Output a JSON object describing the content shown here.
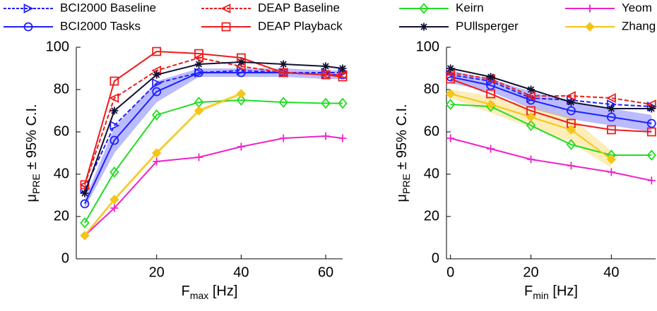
{
  "chart_data": [
    {
      "type": "line",
      "x_label": {
        "main": "F",
        "sub": "max",
        "rest": " [Hz]"
      },
      "y_label": {
        "main": "μ",
        "sub": "PRE",
        "rest": " ± 95% C.I."
      },
      "x": [
        3,
        10,
        20,
        30,
        40,
        50,
        60,
        64
      ],
      "xlim": [
        1,
        64
      ],
      "xticks": [
        20,
        40,
        60
      ],
      "ylim": [
        0,
        100
      ],
      "yticks": [
        0,
        20,
        40,
        60,
        80,
        100
      ],
      "series": [
        {
          "name": "BCI2000 Baseline",
          "color": "#1f1fff",
          "marker": "triangle-right",
          "dash": true,
          "values": [
            33,
            63,
            83,
            88,
            89,
            88,
            88,
            88
          ]
        },
        {
          "name": "BCI2000 Tasks",
          "color": "#1f1fff",
          "marker": "circle",
          "dash": false,
          "values": [
            26,
            56,
            79,
            88,
            88,
            88,
            87,
            87
          ],
          "ci": [
            2,
            6,
            5,
            2,
            2,
            2,
            2,
            2
          ]
        },
        {
          "name": "DEAP Baseline",
          "color": "#ee1c1c",
          "marker": "triangle-left",
          "dash": true,
          "values": [
            35,
            76,
            89,
            95,
            91,
            88,
            87,
            87
          ]
        },
        {
          "name": "DEAP Playback",
          "color": "#ee1c1c",
          "marker": "square",
          "dash": false,
          "values": [
            35,
            84,
            98,
            97,
            95,
            88,
            87,
            86
          ]
        },
        {
          "name": "Keirn",
          "color": "#22dd22",
          "marker": "diamond",
          "dash": false,
          "values": [
            17,
            41,
            68,
            74,
            75,
            74,
            73.5,
            73.5
          ]
        },
        {
          "name": "PUllsperger",
          "color": "#111133",
          "marker": "star",
          "dash": false,
          "values": [
            31,
            70,
            87,
            92,
            93,
            92,
            91,
            90
          ]
        },
        {
          "name": "Yeom",
          "color": "#ee22cc",
          "marker": "plus",
          "dash": false,
          "values": [
            11,
            24,
            46,
            48,
            53,
            57,
            58,
            57
          ]
        },
        {
          "name": "Zhang",
          "color": "#f5c518",
          "marker": "diamond-filled",
          "dash": false,
          "values": [
            11,
            28,
            50,
            70,
            78,
            null,
            null,
            null
          ],
          "ci": [
            1,
            1,
            1,
            1,
            1,
            null,
            null,
            null
          ]
        }
      ]
    },
    {
      "type": "line",
      "x_label": {
        "main": "F",
        "sub": "min",
        "rest": " [Hz]"
      },
      "y_label": {
        "main": "μ",
        "sub": "PRE",
        "rest": " ± 95% C.I."
      },
      "x": [
        0,
        10,
        20,
        30,
        40,
        50
      ],
      "xlim": [
        -1,
        51
      ],
      "xticks": [
        0,
        20,
        40
      ],
      "ylim": [
        0,
        100
      ],
      "yticks": [
        0,
        20,
        40,
        60,
        80,
        100
      ],
      "series": [
        {
          "color": "#1f1fff",
          "marker": "triangle-right",
          "dash": true,
          "values": [
            87,
            84,
            76,
            75,
            73,
            72
          ]
        },
        {
          "color": "#1f1fff",
          "marker": "circle",
          "dash": false,
          "values": [
            86,
            82,
            75,
            70,
            67,
            64
          ],
          "ci": [
            3,
            3,
            4,
            4,
            4,
            4
          ]
        },
        {
          "color": "#ee1c1c",
          "marker": "triangle-left",
          "dash": true,
          "values": [
            88,
            85,
            77,
            77,
            76,
            73
          ]
        },
        {
          "color": "#ee1c1c",
          "marker": "square",
          "dash": false,
          "values": [
            85,
            78,
            70,
            64,
            61,
            60
          ]
        },
        {
          "color": "#22dd22",
          "marker": "diamond",
          "dash": false,
          "values": [
            73,
            72,
            63,
            54,
            49,
            49
          ]
        },
        {
          "color": "#111133",
          "marker": "star",
          "dash": false,
          "values": [
            90,
            86,
            80,
            74,
            71,
            71
          ]
        },
        {
          "color": "#ee22cc",
          "marker": "plus",
          "dash": false,
          "values": [
            57,
            52,
            47,
            44,
            41,
            37
          ]
        },
        {
          "color": "#f5c518",
          "marker": "diamond-filled",
          "dash": false,
          "values": [
            78,
            73,
            67,
            61,
            47,
            null
          ],
          "ci": [
            2,
            4,
            5,
            6,
            4,
            null
          ]
        }
      ]
    }
  ]
}
